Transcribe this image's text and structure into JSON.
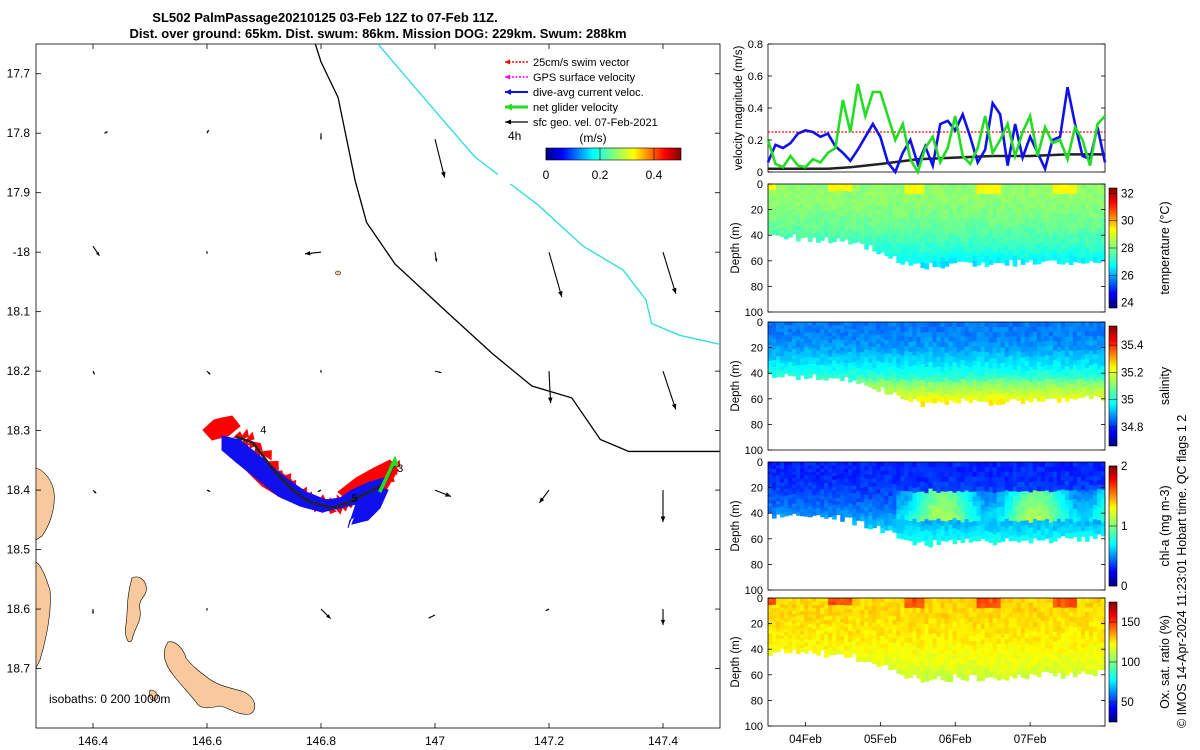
{
  "header": {
    "title_line1": "SL502 PalmPassage20210125 03-Feb 12Z to 07-Feb 11Z.",
    "title_line2": "Dist. over ground: 65km. Dist. swum: 86km. Mission DOG: 229km. Swum: 288km"
  },
  "footer": {
    "credit": "© IMOS 14-Apr-2024 11:23:01 Hobart time. QC flags 1  2"
  },
  "colors": {
    "coast": "#000000",
    "land": "#f7c99c",
    "boundary": "#33dddd",
    "swim": "#ff0000",
    "gps": "#ff00ff",
    "dive_avg": "#1010ee",
    "net": "#22dd22",
    "sfc": "#000000",
    "track": "#222222"
  },
  "chart_data": [
    {
      "type": "map",
      "xlim": [
        146.3,
        147.5
      ],
      "ylim": [
        -18.8,
        -17.65
      ],
      "xticks": [
        146.4,
        146.6,
        146.8,
        147,
        147.2,
        147.4
      ],
      "xtick_labels": [
        "146.4",
        "146.6",
        "146.8",
        "147",
        "147.2",
        "147.4"
      ],
      "yticks": [
        -17.7,
        -17.8,
        -17.9,
        -18,
        -18.1,
        -18.2,
        -18.3,
        -18.4,
        -18.5,
        -18.6,
        -18.7
      ],
      "ytick_labels": [
        "17.7",
        "17.8",
        "17.9",
        "-18",
        "18.1",
        "18.2",
        "18.3",
        "18.4",
        "18.5",
        "18.6",
        "18.7"
      ],
      "legend": [
        {
          "key": "swim",
          "label": "25cm/s swim vector"
        },
        {
          "key": "gps",
          "label": "GPS surface velocity"
        },
        {
          "key": "dive_avg",
          "label": "dive-avg current veloc."
        },
        {
          "key": "net",
          "label": "net glider velocity"
        },
        {
          "key": "sfc",
          "label": "sfc geo. vel. 07-Feb-2021"
        }
      ],
      "legend_position": "top-right",
      "interval_label": "4h",
      "colorbar": {
        "label": "(m/s)",
        "range": [
          0,
          0.5
        ],
        "tick_values": [
          0,
          0.2,
          0.4
        ],
        "tick_labels": [
          "0",
          "0.2",
          "0.4"
        ]
      },
      "isobaths_label": "isobaths: 0   200  1000m",
      "coastline": [
        [
          146.79,
          -17.65
        ],
        [
          146.8,
          -17.68
        ],
        [
          146.83,
          -17.74
        ],
        [
          146.86,
          -17.88
        ],
        [
          146.88,
          -17.95
        ],
        [
          146.93,
          -18.02
        ],
        [
          147.02,
          -18.1
        ],
        [
          147.1,
          -18.17
        ],
        [
          147.17,
          -18.225
        ],
        [
          147.24,
          -18.245
        ],
        [
          147.29,
          -18.315
        ],
        [
          147.34,
          -18.335
        ],
        [
          147.5,
          -18.335
        ]
      ],
      "boundary_line": [
        [
          146.9,
          -17.65
        ],
        [
          146.98,
          -17.74
        ],
        [
          147.07,
          -17.84
        ],
        [
          147.18,
          -17.92
        ],
        [
          147.26,
          -17.99
        ],
        [
          147.33,
          -18.03
        ],
        [
          147.37,
          -18.08
        ],
        [
          147.38,
          -18.12
        ],
        [
          147.43,
          -18.14
        ],
        [
          147.5,
          -18.155
        ]
      ],
      "track_points": [
        [
          146.65,
          -18.31
        ],
        [
          146.68,
          -18.32
        ],
        [
          146.72,
          -18.37
        ],
        [
          146.75,
          -18.4
        ],
        [
          146.78,
          -18.42
        ],
        [
          146.82,
          -18.43
        ],
        [
          146.85,
          -18.42
        ],
        [
          146.88,
          -18.405
        ],
        [
          146.91,
          -18.39
        ],
        [
          146.93,
          -18.355
        ]
      ],
      "track_labels": [
        {
          "text": "4",
          "lon": 146.69,
          "lat": -18.305
        },
        {
          "text": "3",
          "lon": 146.93,
          "lat": -18.37
        },
        {
          "text": "5",
          "lon": 146.85,
          "lat": -18.42
        }
      ],
      "geo_vectors": [
        {
          "lon": 146.42,
          "lat": -17.8,
          "u": 0.01,
          "v": 0.005
        },
        {
          "lon": 146.6,
          "lat": -17.8,
          "u": 0.005,
          "v": 0.01
        },
        {
          "lon": 146.8,
          "lat": -17.8,
          "u": 0.0,
          "v": -0.02
        },
        {
          "lon": 147.0,
          "lat": -17.81,
          "u": 0.03,
          "v": -0.12
        },
        {
          "lon": 147.4,
          "lat": -17.8,
          "u": 0.0,
          "v": -0.005
        },
        {
          "lon": 146.4,
          "lat": -17.99,
          "u": 0.02,
          "v": -0.03
        },
        {
          "lon": 146.6,
          "lat": -18.0,
          "u": 0.0,
          "v": -0.005
        },
        {
          "lon": 146.8,
          "lat": -18.0,
          "u": -0.05,
          "v": -0.005
        },
        {
          "lon": 147.0,
          "lat": -18.0,
          "u": 0.005,
          "v": -0.03
        },
        {
          "lon": 147.2,
          "lat": -18.0,
          "u": 0.04,
          "v": -0.14
        },
        {
          "lon": 147.4,
          "lat": -18.0,
          "u": 0.04,
          "v": -0.13
        },
        {
          "lon": 146.4,
          "lat": -18.2,
          "u": 0.005,
          "v": -0.01
        },
        {
          "lon": 146.6,
          "lat": -18.2,
          "u": 0.01,
          "v": -0.01
        },
        {
          "lon": 146.8,
          "lat": -18.2,
          "u": 0.0,
          "v": -0.005
        },
        {
          "lon": 147.0,
          "lat": -18.2,
          "u": 0.02,
          "v": -0.005
        },
        {
          "lon": 147.2,
          "lat": -18.2,
          "u": 0.005,
          "v": -0.1
        },
        {
          "lon": 147.4,
          "lat": -18.2,
          "u": 0.04,
          "v": -0.12
        },
        {
          "lon": 146.4,
          "lat": -18.4,
          "u": 0.01,
          "v": -0.01
        },
        {
          "lon": 146.6,
          "lat": -18.4,
          "u": 0.01,
          "v": -0.005
        },
        {
          "lon": 146.8,
          "lat": -18.4,
          "u": -0.01,
          "v": -0.005
        },
        {
          "lon": 147.0,
          "lat": -18.4,
          "u": 0.05,
          "v": -0.02
        },
        {
          "lon": 147.2,
          "lat": -18.4,
          "u": -0.03,
          "v": -0.04
        },
        {
          "lon": 147.4,
          "lat": -18.4,
          "u": 0.0,
          "v": -0.1
        },
        {
          "lon": 146.4,
          "lat": -18.6,
          "u": 0.0,
          "v": -0.015
        },
        {
          "lon": 146.6,
          "lat": -18.6,
          "u": 0.0,
          "v": -0.005
        },
        {
          "lon": 146.8,
          "lat": -18.6,
          "u": 0.03,
          "v": -0.03
        },
        {
          "lon": 147.0,
          "lat": -18.61,
          "u": -0.02,
          "v": -0.01
        },
        {
          "lon": 147.2,
          "lat": -18.6,
          "u": -0.01,
          "v": -0.005
        },
        {
          "lon": 147.4,
          "lat": -18.6,
          "u": 0.0,
          "v": -0.05
        }
      ],
      "xlabel": "",
      "ylabel": ""
    },
    {
      "type": "line",
      "ylabel": "velocity magnitude (m/s)",
      "ylim": [
        0,
        0.8
      ],
      "yticks": [
        0,
        0.2,
        0.4,
        0.6,
        0.8
      ],
      "xlim": [
        0.5,
        5.0
      ],
      "series": [
        {
          "name": "swim",
          "color": "#ff0000",
          "style": "dotted",
          "x": [
            0.5,
            5.0
          ],
          "y": [
            0.25,
            0.25
          ]
        },
        {
          "name": "sfc geo",
          "color": "#222222",
          "x": [
            0.5,
            1.0,
            1.3,
            1.6,
            2.0,
            2.5,
            3.0,
            3.5,
            4.0,
            4.5,
            5.0
          ],
          "y": [
            0.02,
            0.02,
            0.02,
            0.03,
            0.05,
            0.08,
            0.09,
            0.1,
            0.1,
            0.11,
            0.11
          ]
        },
        {
          "name": "dive-avg",
          "color": "#1010ee",
          "x": [
            0.5,
            0.6,
            0.7,
            0.8,
            0.9,
            1.0,
            1.1,
            1.2,
            1.3,
            1.4,
            1.5,
            1.6,
            1.7,
            1.8,
            1.9,
            2.0,
            2.1,
            2.2,
            2.3,
            2.4,
            2.5,
            2.6,
            2.7,
            2.8,
            2.9,
            3.0,
            3.1,
            3.2,
            3.3,
            3.4,
            3.5,
            3.6,
            3.7,
            3.8,
            3.9,
            4.0,
            4.1,
            4.2,
            4.3,
            4.4,
            4.5,
            4.6,
            4.7,
            4.8,
            4.9,
            5.0
          ],
          "y": [
            0.06,
            0.17,
            0.15,
            0.18,
            0.24,
            0.26,
            0.25,
            0.22,
            0.24,
            0.16,
            0.12,
            0.07,
            0.14,
            0.22,
            0.3,
            0.22,
            0.06,
            0.0,
            0.12,
            0.2,
            0.05,
            0.16,
            0.04,
            0.3,
            0.32,
            0.26,
            0.36,
            0.22,
            0.06,
            0.14,
            0.43,
            0.36,
            0.04,
            0.3,
            0.09,
            0.22,
            0.12,
            0.02,
            0.2,
            0.22,
            0.53,
            0.3,
            0.1,
            0.08,
            0.28,
            0.06
          ]
        },
        {
          "name": "net",
          "color": "#22dd22",
          "x": [
            0.5,
            0.6,
            0.7,
            0.8,
            0.9,
            1.0,
            1.1,
            1.2,
            1.3,
            1.4,
            1.5,
            1.6,
            1.7,
            1.8,
            1.9,
            2.0,
            2.1,
            2.2,
            2.3,
            2.4,
            2.5,
            2.6,
            2.7,
            2.8,
            2.9,
            3.0,
            3.1,
            3.2,
            3.3,
            3.4,
            3.5,
            3.6,
            3.7,
            3.8,
            3.9,
            4.0,
            4.1,
            4.2,
            4.3,
            4.4,
            4.5,
            4.6,
            4.7,
            4.8,
            4.9,
            5.0
          ],
          "y": [
            0.2,
            0.05,
            0.03,
            0.1,
            0.04,
            0.03,
            0.08,
            0.06,
            0.12,
            0.15,
            0.45,
            0.25,
            0.55,
            0.35,
            0.5,
            0.5,
            0.35,
            0.2,
            0.3,
            0.08,
            0.0,
            0.15,
            0.22,
            0.06,
            0.15,
            0.35,
            0.1,
            0.05,
            0.15,
            0.35,
            0.12,
            0.2,
            0.3,
            0.1,
            0.25,
            0.35,
            0.1,
            0.28,
            0.18,
            0.2,
            0.08,
            0.28,
            0.2,
            0.04,
            0.3,
            0.35
          ]
        }
      ]
    },
    {
      "type": "heatmap",
      "name": "temperature",
      "ylabel": "Depth (m)",
      "colorbar_label": "temperature (°C)",
      "cmin": 23.6,
      "cmax": 32.4,
      "colorbar_ticks": [
        24,
        26,
        28,
        30,
        32
      ],
      "yticks": [
        0,
        20,
        40,
        60,
        80,
        100
      ],
      "ylim": [
        0,
        100
      ],
      "profile_depth": {
        "x": [
          0.5,
          1.0,
          1.5,
          2.0,
          2.3,
          2.6,
          3.0,
          3.4,
          3.8,
          4.2,
          4.6,
          5.0
        ],
        "y": [
          42,
          42,
          44,
          52,
          60,
          64,
          62,
          62,
          62,
          60,
          60,
          58
        ]
      },
      "surface_value": 28.2,
      "deep_value": 26.4
    },
    {
      "type": "heatmap",
      "name": "salinity",
      "ylabel": "Depth (m)",
      "colorbar_label": "salinity",
      "cmin": 34.66,
      "cmax": 35.54,
      "colorbar_ticks": [
        34.8,
        35,
        35.2,
        35.4
      ],
      "yticks": [
        0,
        20,
        40,
        60,
        80,
        100
      ],
      "ylim": [
        0,
        100
      ],
      "profile_depth": {
        "x": [
          0.5,
          1.0,
          1.5,
          2.0,
          2.3,
          2.6,
          3.0,
          3.4,
          3.8,
          4.2,
          4.6,
          5.0
        ],
        "y": [
          42,
          42,
          44,
          52,
          60,
          64,
          62,
          62,
          62,
          60,
          60,
          58
        ]
      },
      "surface_value": 34.86,
      "deep_value": 35.22
    },
    {
      "type": "heatmap",
      "name": "chl-a",
      "ylabel": "Depth (m)",
      "colorbar_label": "chl-a (mg m-3)",
      "cmin": 0,
      "cmax": 2,
      "colorbar_ticks": [
        0,
        1,
        2
      ],
      "yticks": [
        0,
        20,
        40,
        60,
        80,
        100
      ],
      "ylim": [
        0,
        100
      ],
      "profile_depth": {
        "x": [
          0.5,
          1.0,
          1.5,
          2.0,
          2.3,
          2.6,
          3.0,
          3.4,
          3.8,
          4.2,
          4.6,
          5.0
        ],
        "y": [
          42,
          42,
          44,
          52,
          60,
          64,
          62,
          62,
          62,
          60,
          60,
          58
        ]
      },
      "surface_value": 0.3,
      "deep_value": 0.8
    },
    {
      "type": "heatmap",
      "name": "oxygen",
      "ylabel": "Depth (m)",
      "colorbar_label": "Ox. sat. ratio (%)",
      "cmin": 25,
      "cmax": 175,
      "colorbar_ticks": [
        50,
        100,
        150
      ],
      "yticks": [
        0,
        20,
        40,
        60,
        80,
        100
      ],
      "ylim": [
        0,
        100
      ],
      "profile_depth": {
        "x": [
          0.5,
          1.0,
          1.5,
          2.0,
          2.3,
          2.6,
          3.0,
          3.4,
          3.8,
          4.2,
          4.6,
          5.0
        ],
        "y": [
          42,
          42,
          44,
          52,
          60,
          64,
          62,
          62,
          62,
          60,
          60,
          58
        ]
      },
      "surface_value": 128,
      "deep_value": 112,
      "xticks": [
        1,
        2,
        3,
        4
      ],
      "xtick_labels": [
        "04Feb",
        "05Feb",
        "06Feb",
        "07Feb"
      ]
    }
  ]
}
